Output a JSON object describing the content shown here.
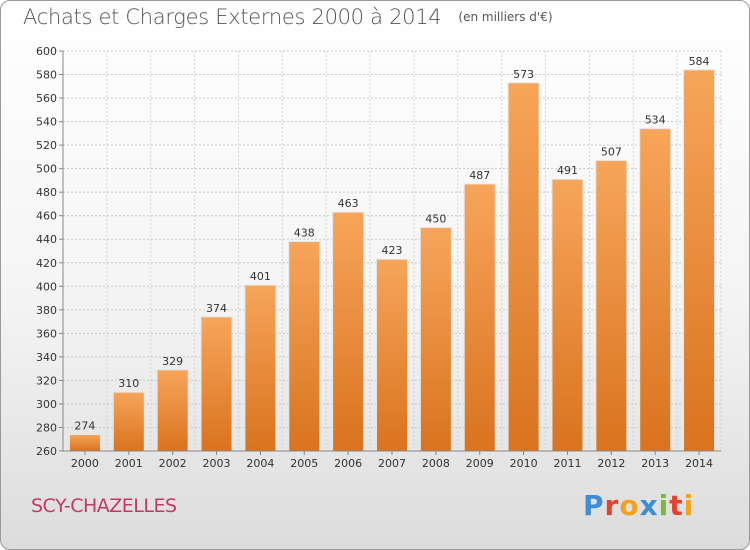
{
  "header": {
    "title": "Achats et Charges Externes 2000 à 2014",
    "unit": "(en milliers d'€)"
  },
  "footer": {
    "town": "SCY-CHAZELLES",
    "logo": "Proxiti",
    "logo_colors": [
      "#3a8fd6",
      "#e8422e",
      "#f3a21b",
      "#3a8fd6",
      "#7cb83a",
      "#e8422e",
      "#f3a21b"
    ]
  },
  "chart_data": {
    "type": "bar",
    "title": "Achats et Charges Externes 2000 à 2014",
    "subtitle": "(en milliers d'€)",
    "xlabel": "",
    "ylabel": "",
    "categories": [
      "2000",
      "2001",
      "2002",
      "2003",
      "2004",
      "2005",
      "2006",
      "2007",
      "2008",
      "2009",
      "2010",
      "2011",
      "2012",
      "2013",
      "2014"
    ],
    "values": [
      274,
      310,
      329,
      374,
      401,
      438,
      463,
      423,
      450,
      487,
      573,
      491,
      507,
      534,
      584
    ],
    "ylim": [
      260,
      600
    ],
    "yticks": [
      260,
      280,
      300,
      320,
      340,
      360,
      380,
      400,
      420,
      440,
      460,
      480,
      500,
      520,
      540,
      560,
      580,
      600
    ],
    "grid": true,
    "bar_color_top": "#f7a55a",
    "bar_color_bottom": "#d9731f"
  }
}
